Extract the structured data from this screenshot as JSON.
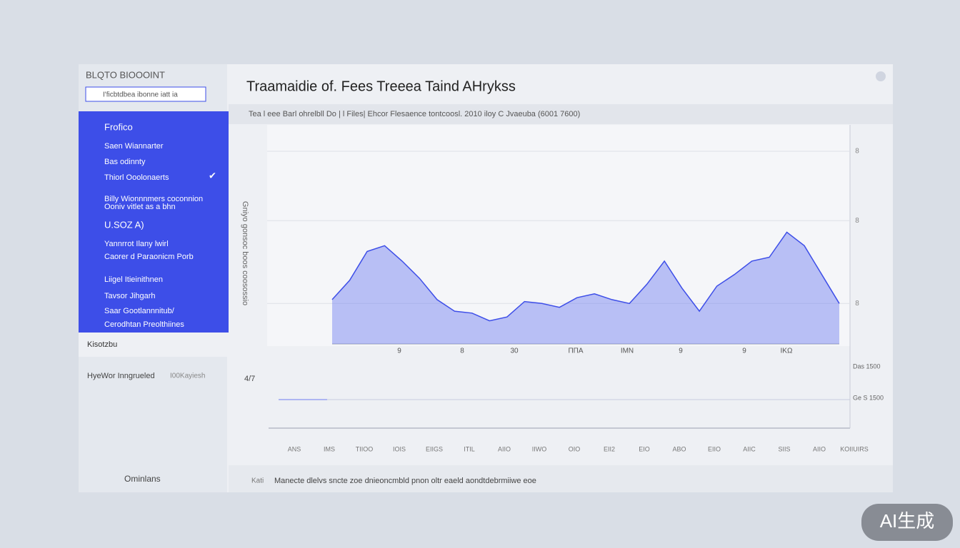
{
  "sidebar": {
    "title": "BLQTO BIOOOINT",
    "search": "I'ficbtdbea ibonne iatt ia",
    "menu": [
      "Frofico",
      "Saen Wiannarter",
      "Bas odinnty",
      "Thiorl Ooolonaerts",
      "Billy Wionnnmers coconnion",
      "Ooniv vitlet as a bhn",
      "U.SOZ A)",
      "Yannrrot Ilany lwirl",
      "Caorer d Paraonicm Porb",
      "Liigel Itieinithnen",
      "Tavsor Jihgarh",
      "Saar Gootlannnitub/",
      "Cerodhtan Preolthiines"
    ],
    "section": "Kisotzbu",
    "row_left": "HyeWor Inngrueled",
    "row_right": "I00Kayiesh",
    "bottom": "Ominlans"
  },
  "main": {
    "title": "Traamaidie of. Fees Treeea Taind AHrykss",
    "subtitle": "Tea l eee Barl ohrelbll Do | l Files| Ehcor Flesaence tontcoosl. 2010 iloy C Jvaeuba (6001 7600)",
    "footer_left": "Kati",
    "footer": "Manecte dlelvs sncte zoe dnieoncmbld pnon oltr eaeld aondtdebrmiiwe eoe"
  },
  "chart_data": {
    "type": "area",
    "ylabel": "Gniyo gonsoc boos coosossio",
    "color": "#6f7df0",
    "values": [
      23,
      33,
      48,
      51,
      43,
      34,
      23,
      17,
      16,
      12,
      14,
      22,
      21,
      19,
      24,
      26,
      23,
      21,
      31,
      43,
      29,
      17,
      30,
      36,
      43,
      45,
      58,
      51,
      36,
      21
    ],
    "ylim": [
      0,
      100
    ],
    "yticks": [
      {
        "value": 100,
        "label": "8"
      },
      {
        "value": 64,
        "label": "8"
      },
      {
        "value": 21,
        "label": "8"
      }
    ],
    "grid": true,
    "x_labels": [
      "9",
      "8",
      "30",
      "ΠΠΑ",
      "ΙΜΝ",
      "9",
      "9",
      "ΙΚΩ"
    ]
  },
  "lower_chart": {
    "left_label": "4/7",
    "right_labels": [
      "Das 1500",
      "Ge S 1500"
    ],
    "labels": [
      "ANS",
      "IMS",
      "TIIOO",
      "IOIS",
      "EIIGS",
      "ITIL",
      "AIIO",
      "IIWO",
      "OIO",
      "EII2",
      "EIO",
      "ABO",
      "EIIO",
      "AIIC",
      "SIIS",
      "AIIO",
      "KOIIUIRS"
    ]
  },
  "watermark": "AI生成"
}
